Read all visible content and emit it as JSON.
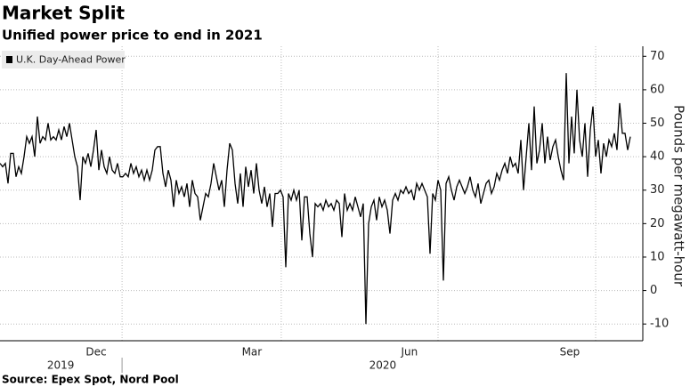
{
  "chart_data": {
    "type": "line",
    "title": "Market Split",
    "subtitle": "Unified power price to end in 2021",
    "y_label": "Pounds per megawatt-hour",
    "source": "Source: Epex Spot, Nord Pool",
    "xlim": [
      0,
      240
    ],
    "xticks": [
      {
        "value": 36,
        "label": "Dec"
      },
      {
        "value": 94.3,
        "label": "Mar"
      },
      {
        "value": 153.3,
        "label": "Jun"
      },
      {
        "value": 213.3,
        "label": "Sep"
      }
    ],
    "xgrid": [
      45.7,
      105.3,
      164,
      223
    ],
    "year_labels": [
      {
        "value": 22.7,
        "label": "2019"
      },
      {
        "value": 143.3,
        "label": "2020"
      }
    ],
    "year_divider": 45.7,
    "ylim": [
      -15,
      73
    ],
    "yticks": [
      -10,
      0,
      10,
      20,
      30,
      40,
      50,
      60,
      70
    ],
    "grid": true,
    "legend": "top-left",
    "series": [
      {
        "name": "U.K. Day-Ahead Power",
        "color": "#000000",
        "values": [
          38,
          37,
          38,
          32,
          41,
          41,
          34,
          37,
          35,
          40,
          46,
          44,
          46,
          40,
          52,
          44,
          46,
          45,
          50,
          45,
          46,
          45,
          48,
          45,
          49,
          46,
          50,
          45,
          40,
          37,
          27,
          40,
          38,
          41,
          37,
          42,
          48,
          36,
          42,
          37,
          35,
          40,
          36,
          35,
          38,
          34,
          34,
          35,
          34,
          38,
          35,
          37,
          34,
          36,
          33,
          36,
          33,
          36,
          42,
          43,
          43,
          35,
          31,
          36,
          33,
          25,
          33,
          29,
          31,
          28,
          32,
          25,
          33,
          29,
          28,
          21,
          25,
          29,
          28,
          32,
          38,
          34,
          30,
          33,
          25,
          36,
          44,
          42,
          32,
          26,
          35,
          25,
          37,
          31,
          36,
          29,
          38,
          30,
          26,
          31,
          25,
          29,
          19,
          29,
          29,
          30,
          28,
          7,
          29,
          27,
          30,
          27,
          30,
          15,
          28,
          28,
          17,
          10,
          26,
          25,
          26,
          24,
          27,
          25,
          26,
          24,
          27,
          26,
          16,
          29,
          24,
          26,
          24,
          28,
          25,
          22,
          26,
          -10,
          20,
          25,
          27,
          21,
          28,
          25,
          27,
          24,
          17,
          27,
          29,
          27,
          30,
          29,
          31,
          29,
          30,
          27,
          32,
          30,
          32,
          30,
          28,
          11,
          29,
          27,
          33,
          30,
          3,
          32,
          34,
          30,
          27,
          31,
          33,
          31,
          29,
          31,
          34,
          30,
          28,
          32,
          26,
          29,
          32,
          33,
          29,
          31,
          35,
          33,
          36,
          38,
          35,
          40,
          37,
          38,
          35,
          45,
          30,
          40,
          50,
          36,
          55,
          38,
          42,
          50,
          38,
          46,
          39,
          43,
          45,
          40,
          36,
          33,
          65,
          38,
          52,
          41,
          60,
          45,
          40,
          50,
          34,
          48,
          55,
          40,
          45,
          35,
          44,
          40,
          45,
          43,
          47,
          42,
          56,
          47,
          47,
          42,
          46
        ]
      }
    ]
  }
}
